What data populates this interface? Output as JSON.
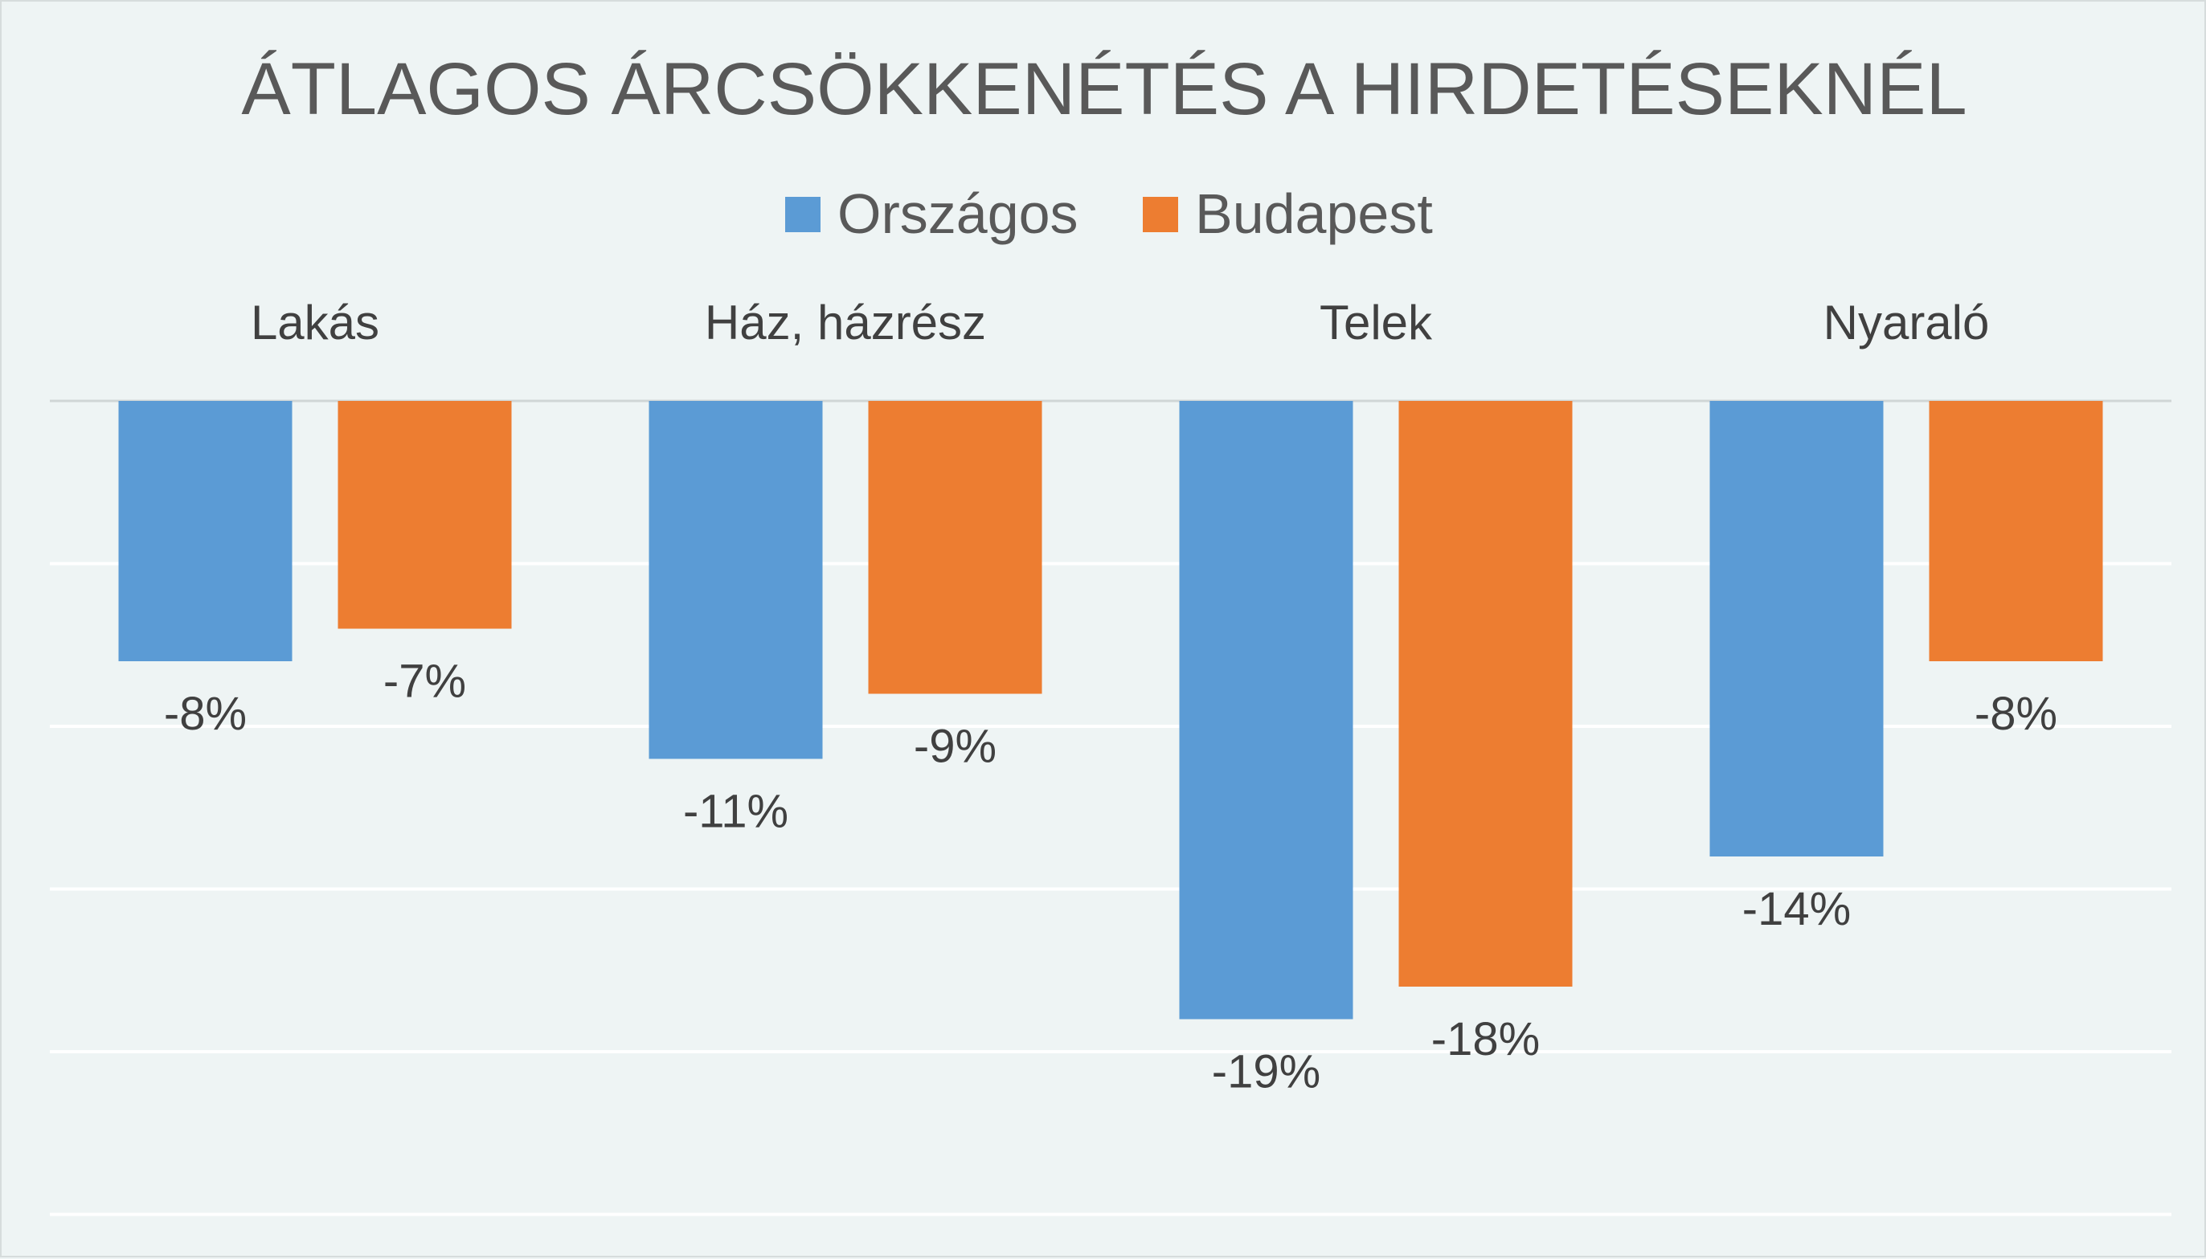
{
  "chart_data": {
    "type": "bar",
    "title": "ÁTLAGOS ÁRCSÖKKENÉTÉS A HIRDETÉSEKNÉL",
    "categories": [
      "Lakás",
      "Ház, házrész",
      "Telek",
      "Nyaraló"
    ],
    "series": [
      {
        "name": "Országos",
        "color": "#5b9bd5",
        "values": [
          -8,
          -11,
          -19,
          -14
        ],
        "labels": [
          "-8%",
          "-11%",
          "-19%",
          "-14%"
        ]
      },
      {
        "name": "Budapest",
        "color": "#ed7d31",
        "values": [
          -7,
          -9,
          -18,
          -8
        ],
        "labels": [
          "-7%",
          "-9%",
          "-18%",
          "-8%"
        ]
      }
    ],
    "ylim": [
      -25,
      0
    ],
    "grid": true,
    "category_labels_position": "top",
    "legend_position": "top"
  }
}
